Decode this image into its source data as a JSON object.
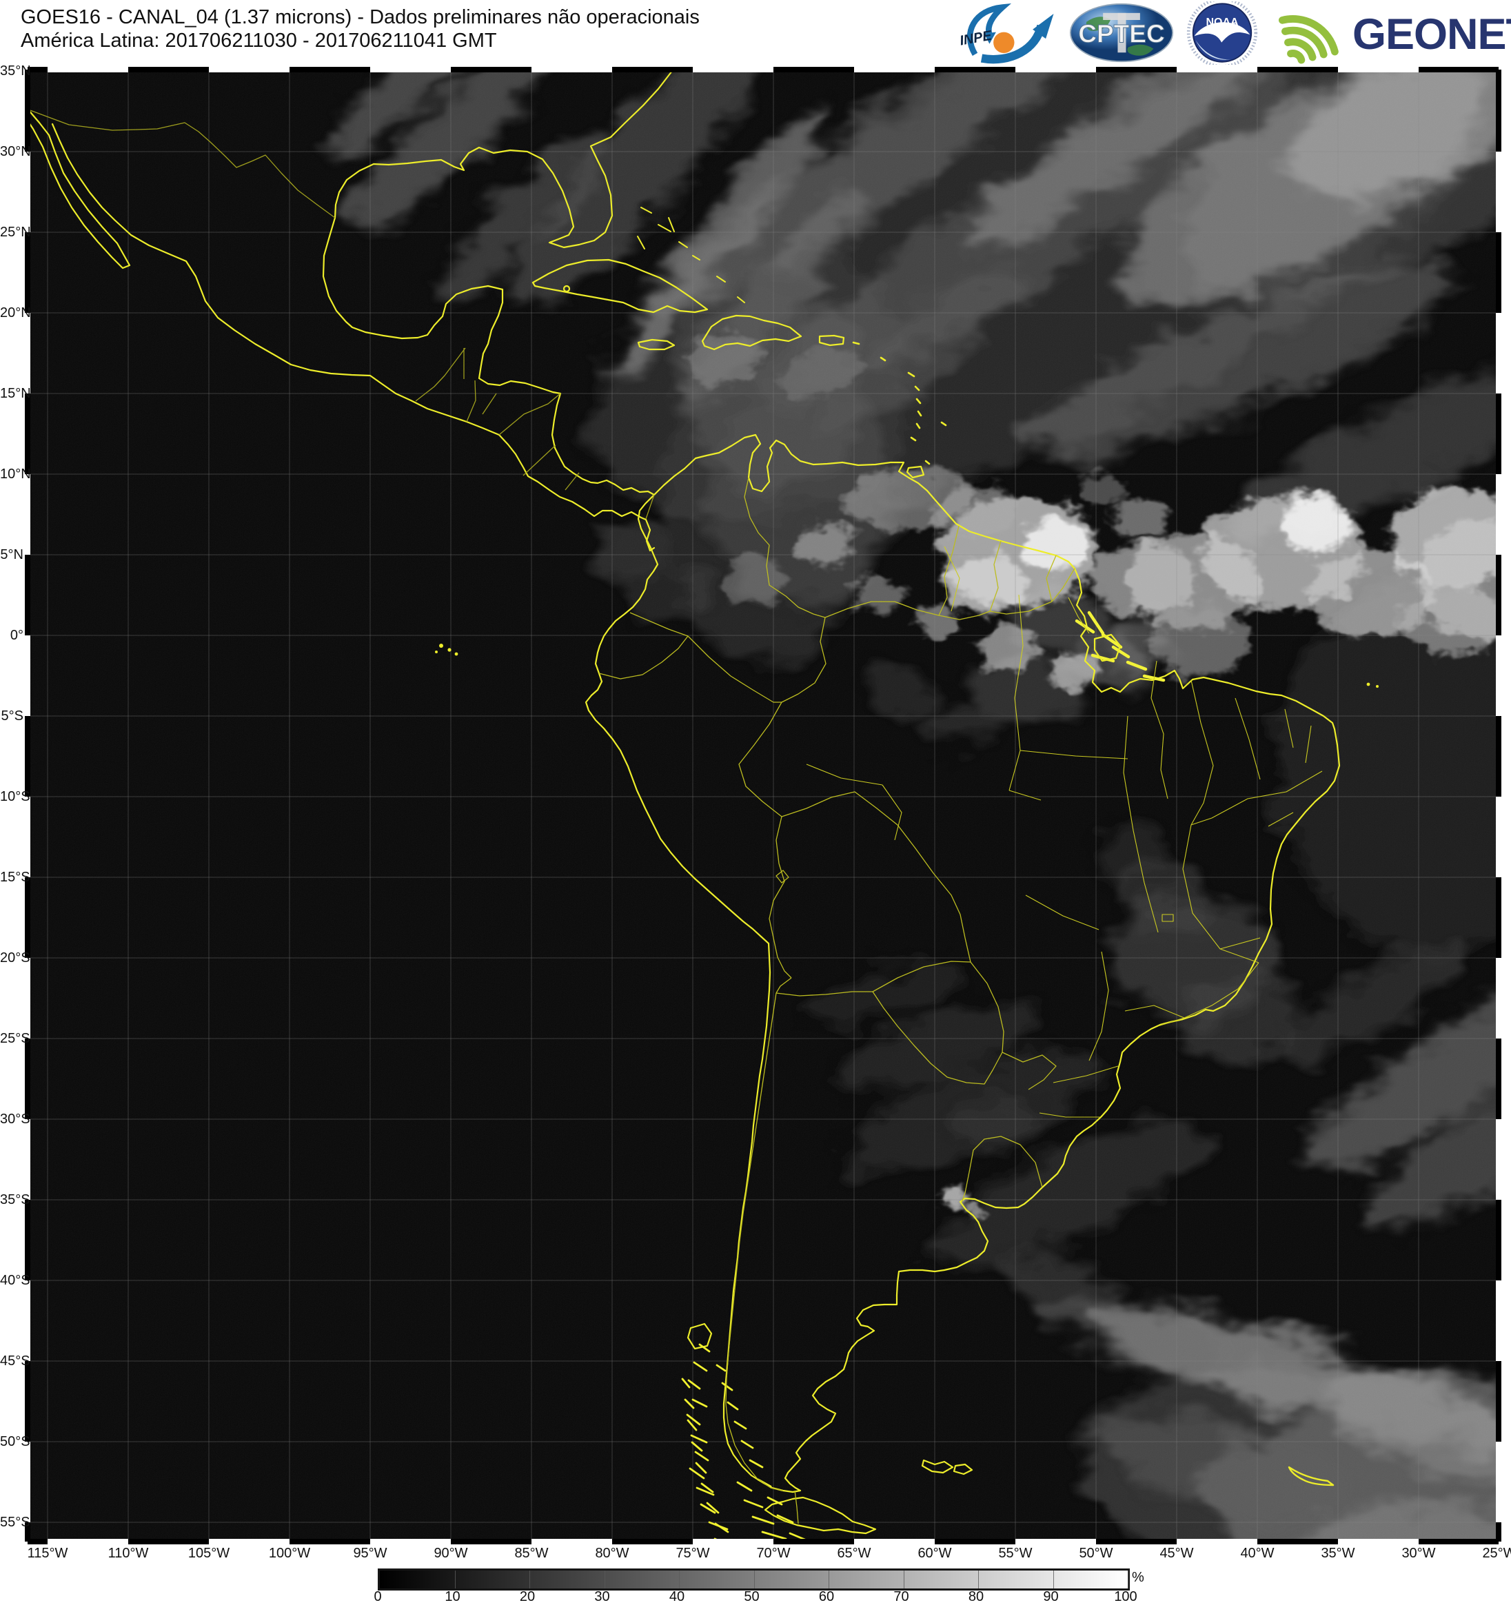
{
  "header": {
    "title_line1": "GOES16 - CANAL_04 (1.37 microns) - Dados preliminares não operacionais",
    "title_line2": "América Latina: 201706211030 - 201706211041 GMT"
  },
  "logos": {
    "inpe_label": "INPE",
    "cptec_label": "CPTEC",
    "noaa_label": "NOAA",
    "geonetcast_label": "GEONETCast"
  },
  "map": {
    "lat_labels": [
      "35°N",
      "30°N",
      "25°N",
      "20°N",
      "15°N",
      "10°N",
      "5°N",
      "0°",
      "5°S",
      "10°S",
      "15°S",
      "20°S",
      "25°S",
      "30°S",
      "35°S",
      "40°S",
      "45°S",
      "50°S",
      "55°S"
    ],
    "lon_labels": [
      "115°W",
      "110°W",
      "105°W",
      "100°W",
      "95°W",
      "90°W",
      "85°W",
      "80°W",
      "75°W",
      "70°W",
      "65°W",
      "60°W",
      "55°W",
      "50°W",
      "45°W",
      "40°W",
      "35°W",
      "30°W",
      "25°W"
    ]
  },
  "colorbar": {
    "unit": "%",
    "ticks": [
      "0",
      "10",
      "20",
      "30",
      "40",
      "50",
      "60",
      "70",
      "80",
      "90",
      "100"
    ],
    "min": 0,
    "max": 100
  },
  "colors": {
    "coastline_yellow": "#ecec20",
    "border_yellow": "#b9b915",
    "map_background": "#040404",
    "inpe_blue": "#1a6fad",
    "inpe_orange": "#ee8a2a",
    "noaa_blue": "#26408e",
    "geonetcast_green": "#94bf3e",
    "geonetcast_navy": "#27356f"
  }
}
